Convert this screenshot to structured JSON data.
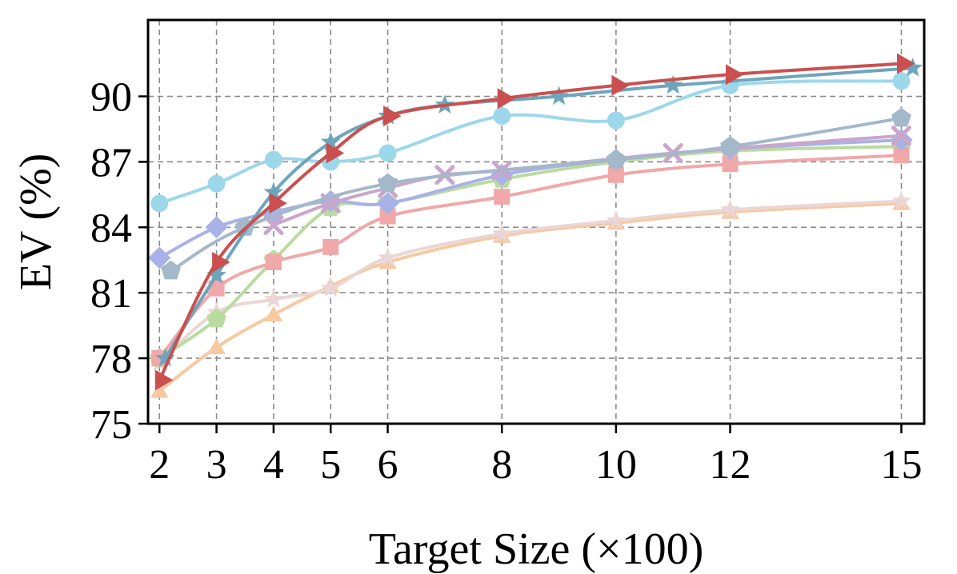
{
  "chart_data": {
    "type": "line",
    "title": "",
    "xlabel": "Target Size (×100)",
    "ylabel": "EV (%)",
    "xlim": [
      1.8,
      15.4
    ],
    "ylim": [
      75,
      93.5
    ],
    "x_ticks": [
      2,
      3,
      4,
      5,
      6,
      8,
      10,
      12,
      15
    ],
    "x_tick_labels": [
      "2",
      "3",
      "4",
      "5",
      "6",
      "8",
      "10",
      "12",
      "15"
    ],
    "y_ticks": [
      75,
      78,
      81,
      84,
      87,
      90
    ],
    "y_tick_labels": [
      "75",
      "78",
      "81",
      "84",
      "87",
      "90"
    ],
    "grid": true,
    "legend": "none",
    "series": [
      {
        "color": "#f7c9a0",
        "marker": "triangle-up",
        "x": [
          2,
          3,
          4,
          5,
          6,
          8,
          10,
          12,
          15
        ],
        "y": [
          76.5,
          78.5,
          80.0,
          81.3,
          82.4,
          83.6,
          84.2,
          84.7,
          85.1
        ]
      },
      {
        "color": "#ead6d4",
        "marker": "star",
        "x": [
          2,
          3,
          4,
          5,
          6,
          8,
          10,
          12,
          15
        ],
        "y": [
          77.8,
          80.1,
          80.7,
          81.2,
          82.6,
          83.7,
          84.3,
          84.8,
          85.2
        ]
      },
      {
        "color": "#b9dba0",
        "marker": "pentagon",
        "x": [
          2,
          3,
          4,
          5,
          6,
          8,
          10,
          12,
          15
        ],
        "y": [
          78.0,
          79.8,
          82.5,
          84.9,
          85.1,
          86.2,
          87.0,
          87.5,
          87.7
        ]
      },
      {
        "color": "#f0a8a8",
        "marker": "square",
        "x": [
          2,
          3,
          4,
          5,
          6,
          8,
          10,
          12,
          15
        ],
        "y": [
          78.0,
          81.2,
          82.4,
          83.1,
          84.5,
          85.4,
          86.4,
          86.9,
          87.3
        ]
      },
      {
        "color": "#a9b2e6",
        "marker": "diamond",
        "x": [
          2,
          3,
          4,
          5,
          6,
          8,
          10,
          12,
          15
        ],
        "y": [
          82.6,
          84.0,
          84.7,
          85.2,
          85.1,
          86.4,
          87.1,
          87.6,
          88.0
        ]
      },
      {
        "color": "#c9a6cc",
        "marker": "x",
        "x": [
          4,
          5,
          6,
          7,
          8,
          11,
          15
        ],
        "y": [
          84.1,
          85.1,
          85.8,
          86.4,
          86.6,
          87.4,
          88.2
        ]
      },
      {
        "color": "#a3b8c9",
        "marker": "pentagon",
        "x": [
          2.2,
          3.5,
          6,
          10,
          12,
          15
        ],
        "y": [
          82.0,
          84.0,
          86.0,
          87.1,
          87.7,
          89.0
        ]
      },
      {
        "color": "#9dd7ea",
        "marker": "circle",
        "x": [
          2,
          3,
          4,
          5,
          6,
          8,
          10,
          12,
          15
        ],
        "y": [
          85.1,
          86.0,
          87.1,
          87.0,
          87.4,
          89.1,
          88.9,
          90.5,
          90.7
        ]
      },
      {
        "color": "#6da5bc",
        "marker": "star",
        "x": [
          2.1,
          3,
          4,
          5,
          6,
          7,
          9,
          11,
          15.2
        ],
        "y": [
          78.0,
          81.8,
          85.6,
          87.9,
          89.1,
          89.6,
          90.0,
          90.5,
          91.3
        ]
      },
      {
        "color": "#c9504f",
        "marker": "triangle-right",
        "x": [
          2,
          3,
          4,
          5,
          6,
          8,
          10,
          12,
          15
        ],
        "y": [
          77.0,
          82.4,
          85.1,
          87.4,
          89.1,
          89.9,
          90.5,
          91.0,
          91.5
        ]
      }
    ]
  }
}
